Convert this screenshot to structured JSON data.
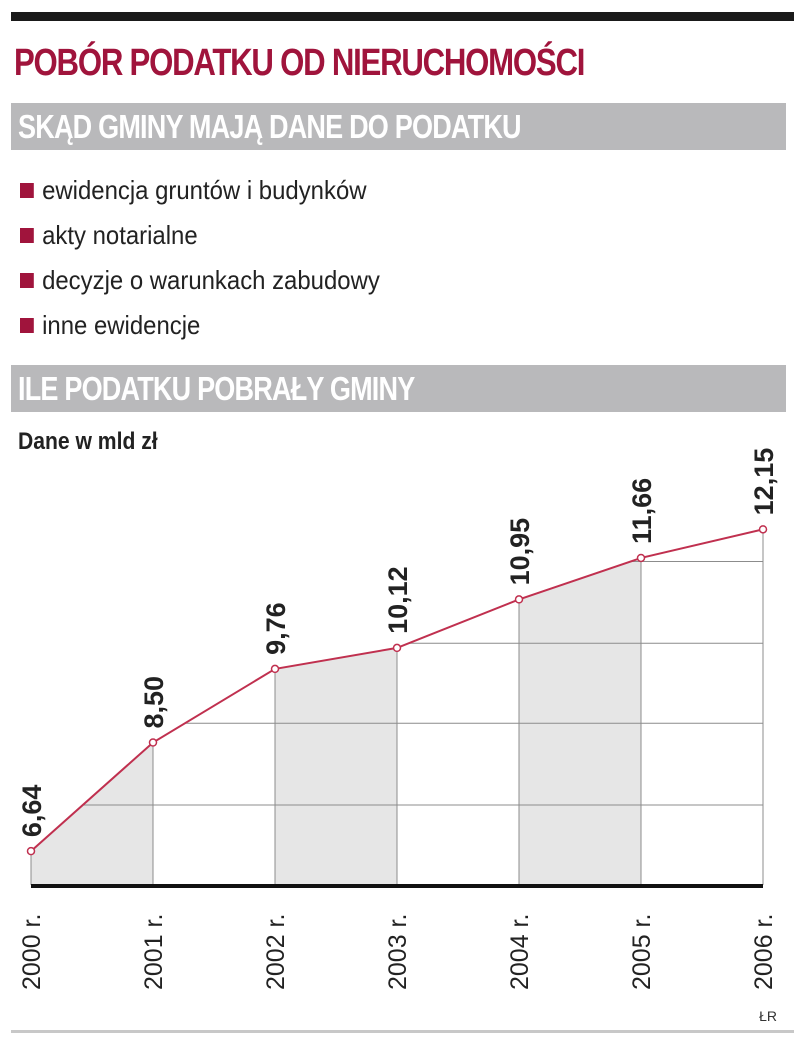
{
  "title": "POBÓR PODATKU OD NIERUCHOMOŚCI",
  "section1": {
    "heading": "SKĄD GMINY MAJĄ DANE DO PODATKU",
    "items": [
      "ewidencja gruntów i budynków",
      "akty notarialne",
      "decyzje o warunkach zabudowy",
      "inne ewidencje"
    ]
  },
  "section2": {
    "heading": "ILE PODATKU  POBRAŁY GMINY"
  },
  "colors": {
    "accent": "#a0143c",
    "band": "#b9b9bb",
    "fill": "#e6e6e6",
    "line": "#c0304f"
  },
  "credit": "ŁR",
  "chart_data": {
    "type": "line",
    "title": "",
    "ylabel": "Dane w mld zł",
    "xlabel": "",
    "categories": [
      "2000 r.",
      "2001 r.",
      "2002 r.",
      "2003 r.",
      "2004 r.",
      "2005 r.",
      "2006 r."
    ],
    "values": [
      6.64,
      8.5,
      9.76,
      10.12,
      10.95,
      11.66,
      12.15
    ],
    "value_labels": [
      "6,64",
      "8,50",
      "9,76",
      "10,12",
      "10,95",
      "11,66",
      "12,15"
    ],
    "ylim": [
      6.06,
      12.6
    ],
    "grid": true,
    "area_fill": "alternating shaded columns under line"
  }
}
